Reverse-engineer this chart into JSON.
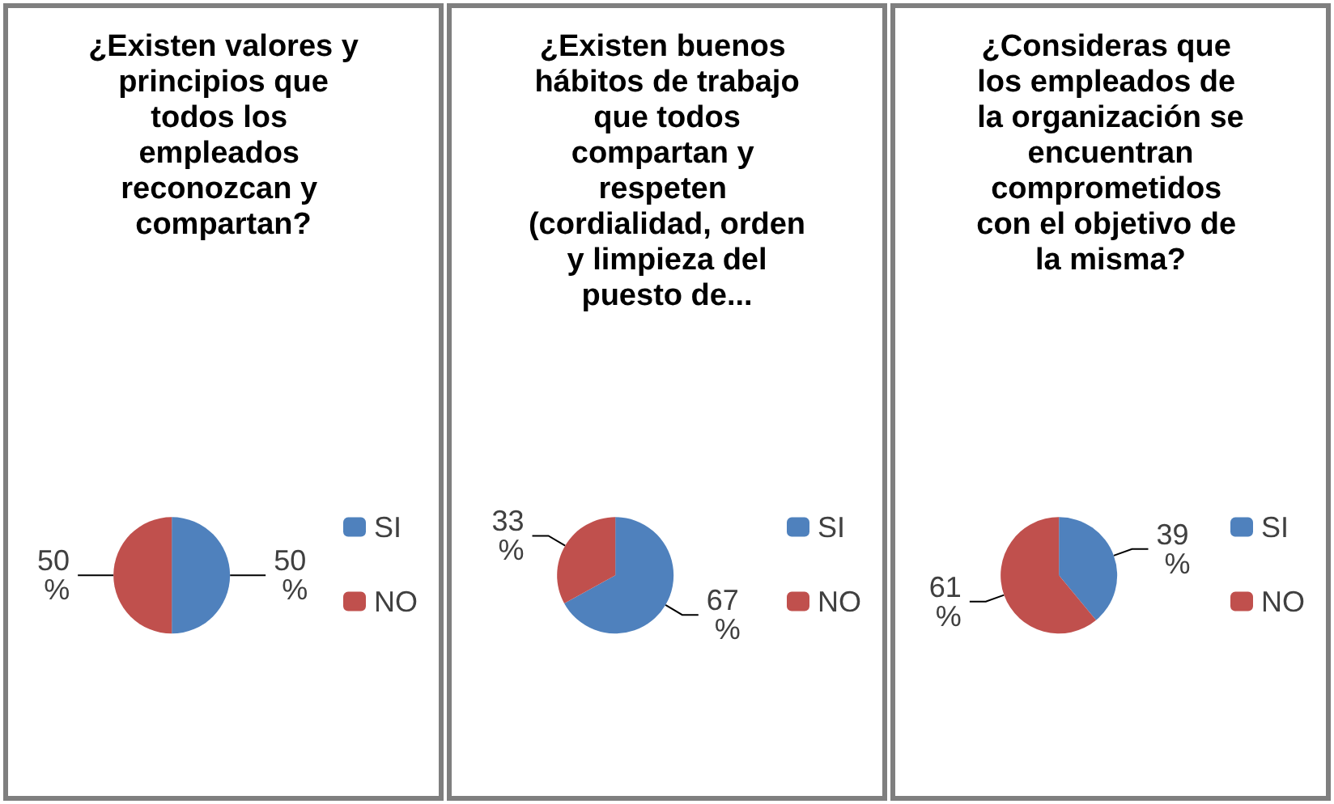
{
  "chart_data": [
    {
      "type": "pie",
      "title": "¿Existen valores y principios que todos los empleados reconozcan y compartan?",
      "categories": [
        "SI",
        "NO"
      ],
      "values": [
        50,
        50
      ],
      "colors": [
        "#4f81bd",
        "#c0504d"
      ],
      "value_labels": [
        "50 %",
        "50 %"
      ],
      "legend": "right"
    },
    {
      "type": "pie",
      "title": "¿Existen buenos hábitos de trabajo que todos compartan y respeten (cordialidad, orden y limpieza del puesto de...",
      "categories": [
        "SI",
        "NO"
      ],
      "values": [
        67,
        33
      ],
      "colors": [
        "#4f81bd",
        "#c0504d"
      ],
      "value_labels": [
        "67 %",
        "33 %"
      ],
      "legend": "right"
    },
    {
      "type": "pie",
      "title": "¿Consideras que los empleados de la organización se encuentran comprometidos con el objetivo de la misma?",
      "categories": [
        "SI",
        "NO"
      ],
      "values": [
        39,
        61
      ],
      "colors": [
        "#4f81bd",
        "#c0504d"
      ],
      "value_labels": [
        "39 %",
        "61 %"
      ],
      "legend": "right"
    }
  ]
}
